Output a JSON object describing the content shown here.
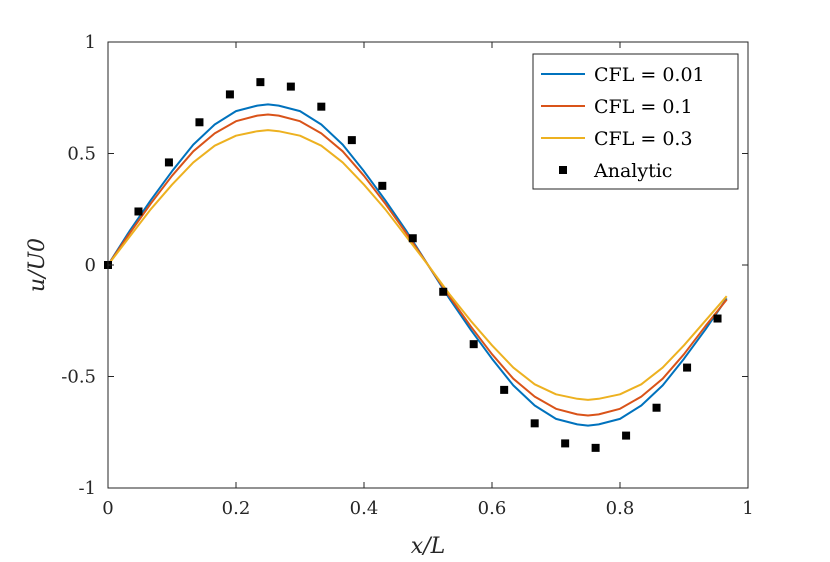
{
  "chart_data": {
    "type": "line",
    "title": "",
    "xlabel": "x/L",
    "ylabel": "u/U0",
    "xlim": [
      0,
      1
    ],
    "ylim": [
      -1,
      1
    ],
    "xticks": [
      0,
      0.2,
      0.4,
      0.6,
      0.8,
      1
    ],
    "yticks": [
      -1,
      -0.5,
      0,
      0.5,
      1
    ],
    "xtick_labels": [
      "0",
      "0.2",
      "0.4",
      "0.6",
      "0.8",
      "1"
    ],
    "ytick_labels": [
      "-1",
      "-0.5",
      "0",
      "0.5",
      "1"
    ],
    "grid": false,
    "legend_position": "top-right",
    "series": [
      {
        "name": "CFL = 0.01",
        "kind": "line",
        "color": "#0072BD",
        "x": [
          0,
          0.0333,
          0.0667,
          0.1,
          0.1333,
          0.1667,
          0.2,
          0.2333,
          0.25,
          0.2667,
          0.3,
          0.3333,
          0.3667,
          0.4,
          0.4333,
          0.4667,
          0.5,
          0.5333,
          0.5667,
          0.6,
          0.6333,
          0.6667,
          0.7,
          0.7333,
          0.75,
          0.7667,
          0.8,
          0.8333,
          0.8667,
          0.9,
          0.9333,
          0.9667
        ],
        "y": [
          0,
          0.15,
          0.29,
          0.42,
          0.54,
          0.63,
          0.69,
          0.715,
          0.72,
          0.715,
          0.69,
          0.63,
          0.54,
          0.42,
          0.29,
          0.15,
          0,
          -0.15,
          -0.29,
          -0.42,
          -0.54,
          -0.63,
          -0.69,
          -0.715,
          -0.72,
          -0.715,
          -0.69,
          -0.63,
          -0.54,
          -0.42,
          -0.29,
          -0.15
        ]
      },
      {
        "name": "CFL = 0.1",
        "kind": "line",
        "color": "#D95319",
        "x": [
          0,
          0.0333,
          0.0667,
          0.1,
          0.1333,
          0.1667,
          0.2,
          0.2333,
          0.25,
          0.2667,
          0.3,
          0.3333,
          0.3667,
          0.4,
          0.4333,
          0.4667,
          0.5,
          0.5333,
          0.5667,
          0.6,
          0.6333,
          0.6667,
          0.7,
          0.7333,
          0.75,
          0.7667,
          0.8,
          0.8333,
          0.8667,
          0.9,
          0.9333,
          0.9667
        ],
        "y": [
          0,
          0.14,
          0.275,
          0.4,
          0.51,
          0.59,
          0.645,
          0.67,
          0.675,
          0.67,
          0.645,
          0.59,
          0.51,
          0.4,
          0.275,
          0.14,
          0,
          -0.14,
          -0.275,
          -0.4,
          -0.51,
          -0.59,
          -0.645,
          -0.67,
          -0.675,
          -0.67,
          -0.645,
          -0.59,
          -0.51,
          -0.4,
          -0.275,
          -0.155
        ]
      },
      {
        "name": "CFL = 0.3",
        "kind": "line",
        "color": "#EDB120",
        "x": [
          0,
          0.0333,
          0.0667,
          0.1,
          0.1333,
          0.1667,
          0.2,
          0.2333,
          0.25,
          0.2667,
          0.3,
          0.3333,
          0.3667,
          0.4,
          0.4333,
          0.4667,
          0.5,
          0.5333,
          0.5667,
          0.6,
          0.6333,
          0.6667,
          0.7,
          0.7333,
          0.75,
          0.7667,
          0.8,
          0.8333,
          0.8667,
          0.9,
          0.9333,
          0.9667
        ],
        "y": [
          0,
          0.125,
          0.25,
          0.36,
          0.46,
          0.535,
          0.58,
          0.6,
          0.605,
          0.6,
          0.58,
          0.535,
          0.46,
          0.36,
          0.25,
          0.125,
          0,
          -0.13,
          -0.25,
          -0.36,
          -0.46,
          -0.535,
          -0.58,
          -0.6,
          -0.605,
          -0.6,
          -0.58,
          -0.535,
          -0.46,
          -0.36,
          -0.25,
          -0.14
        ]
      },
      {
        "name": "Analytic",
        "kind": "marker",
        "color": "#000000",
        "x": [
          0,
          0.0476,
          0.0952,
          0.1429,
          0.1905,
          0.2381,
          0.2857,
          0.3333,
          0.381,
          0.4286,
          0.4762,
          0.5238,
          0.5714,
          0.619,
          0.6667,
          0.7143,
          0.7619,
          0.8095,
          0.8571,
          0.9048,
          0.9524
        ],
        "y": [
          0,
          0.24,
          0.46,
          0.64,
          0.765,
          0.82,
          0.8,
          0.71,
          0.56,
          0.355,
          0.12,
          -0.12,
          -0.355,
          -0.56,
          -0.71,
          -0.8,
          -0.82,
          -0.765,
          -0.64,
          -0.46,
          -0.24
        ]
      }
    ]
  }
}
